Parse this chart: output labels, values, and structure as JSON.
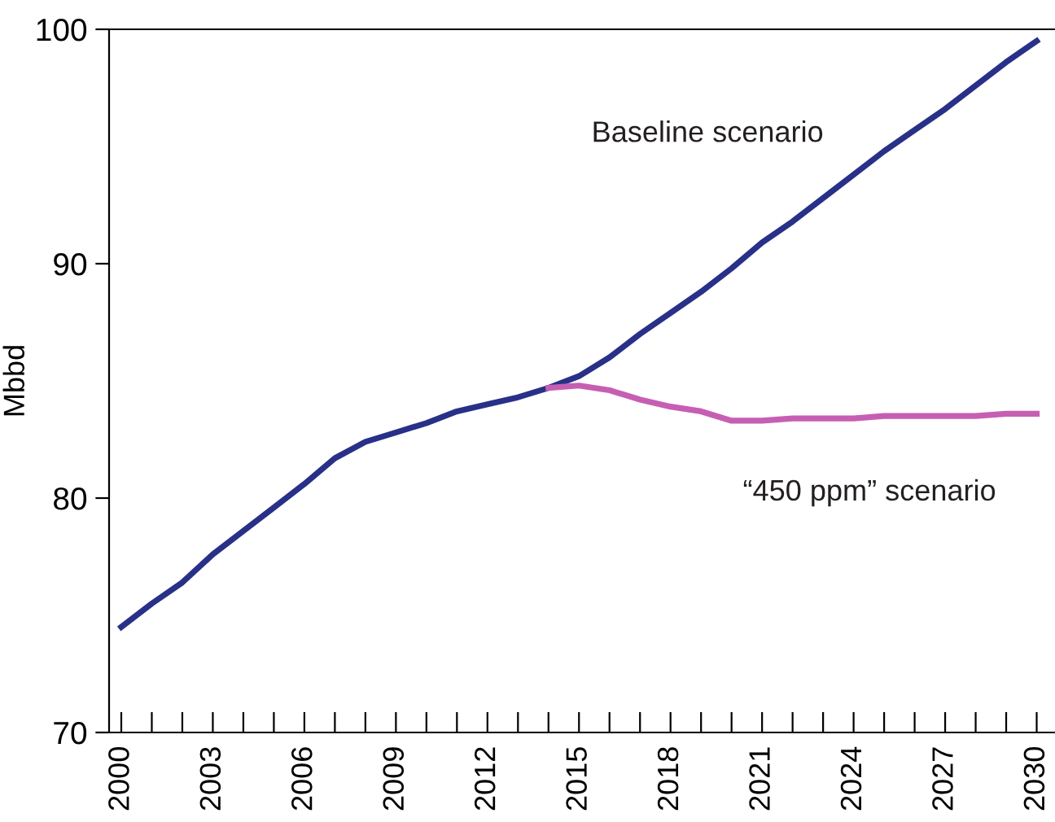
{
  "chart_data": {
    "type": "line",
    "ylabel": "Mbbd",
    "xlim": [
      1999.6,
      2030.6
    ],
    "ylim": [
      70,
      100
    ],
    "yticks": [
      70,
      80,
      90,
      100
    ],
    "xticks": [
      2000,
      {
        "value": 2001,
        "label": null
      },
      {
        "value": 2002,
        "label": null
      },
      2003,
      {
        "value": 2004,
        "label": null
      },
      {
        "value": 2005,
        "label": null
      },
      2006,
      {
        "value": 2007,
        "label": null
      },
      {
        "value": 2008,
        "label": null
      },
      2009,
      {
        "value": 2010,
        "label": null
      },
      {
        "value": 2011,
        "label": null
      },
      2012,
      {
        "value": 2013,
        "label": null
      },
      {
        "value": 2014,
        "label": null
      },
      2015,
      {
        "value": 2016,
        "label": null
      },
      {
        "value": 2017,
        "label": null
      },
      2018,
      {
        "value": 2019,
        "label": null
      },
      {
        "value": 2020,
        "label": null
      },
      2021,
      {
        "value": 2022,
        "label": null
      },
      {
        "value": 2023,
        "label": null
      },
      2024,
      {
        "value": 2025,
        "label": null
      },
      {
        "value": 2026,
        "label": null
      },
      2027,
      {
        "value": 2028,
        "label": null
      },
      {
        "value": 2029,
        "label": null
      },
      2030
    ],
    "grid": false,
    "legend": false,
    "marker": "none",
    "line_style": "solid",
    "series": [
      {
        "name": "Baseline scenario",
        "color": "#283088",
        "x": [
          2000,
          2001,
          2002,
          2003,
          2004,
          2005,
          2006,
          2007,
          2008,
          2009,
          2010,
          2011,
          2012,
          2013,
          2014,
          2015,
          2016,
          2017,
          2018,
          2019,
          2020,
          2021,
          2022,
          2023,
          2024,
          2025,
          2026,
          2027,
          2028,
          2029,
          2030
        ],
        "values": [
          74.5,
          75.5,
          76.4,
          77.6,
          78.6,
          79.6,
          80.6,
          81.7,
          82.4,
          82.8,
          83.2,
          83.7,
          84.0,
          84.3,
          84.7,
          85.2,
          86.0,
          87.0,
          87.9,
          88.8,
          89.8,
          90.9,
          91.8,
          92.8,
          93.8,
          94.8,
          95.7,
          96.6,
          97.6,
          98.6,
          99.5
        ]
      },
      {
        "name": "“450 ppm” scenario",
        "color": "#c65fb3",
        "x": [
          2014,
          2015,
          2016,
          2017,
          2018,
          2019,
          2020,
          2021,
          2022,
          2023,
          2024,
          2025,
          2026,
          2027,
          2028,
          2029,
          2030
        ],
        "values": [
          84.7,
          84.8,
          84.6,
          84.2,
          83.9,
          83.7,
          83.3,
          83.3,
          83.4,
          83.4,
          83.4,
          83.5,
          83.5,
          83.5,
          83.5,
          83.6,
          83.6
        ]
      }
    ]
  }
}
